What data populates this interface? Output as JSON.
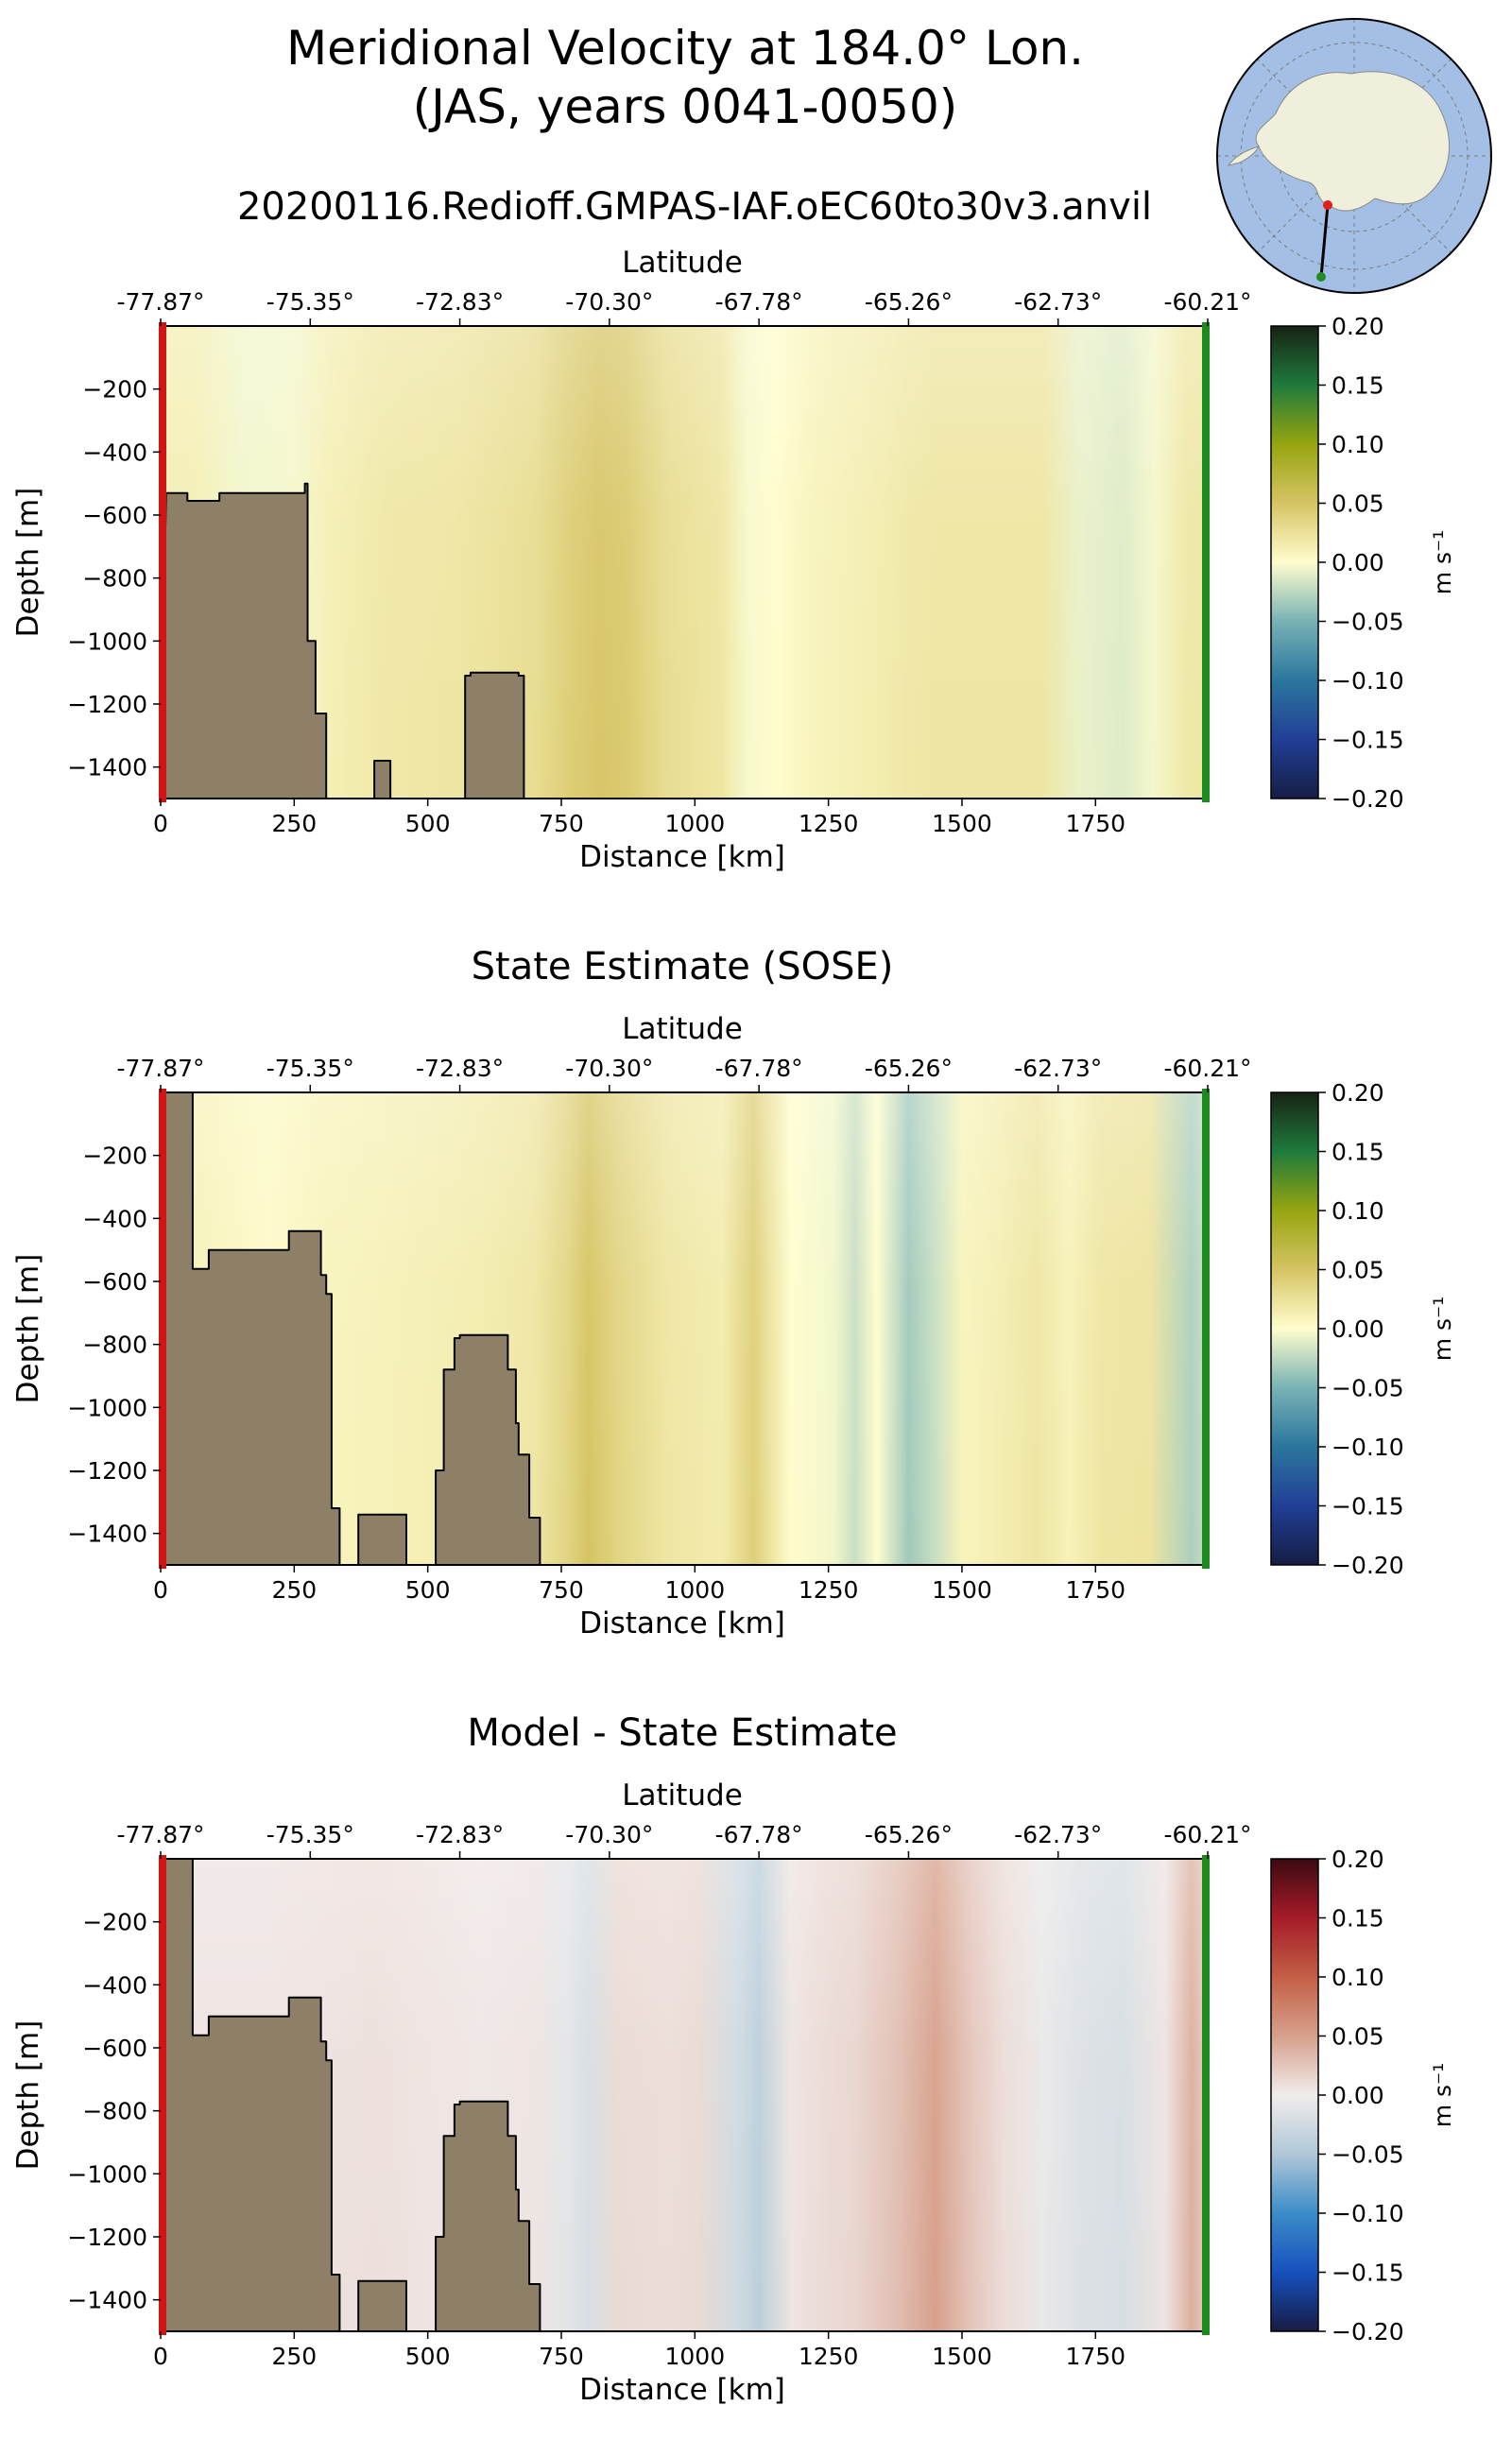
{
  "figure": {
    "title_line1": "Meridional Velocity at 184.0° Lon.",
    "title_line2": "(JAS, years 0041-0050)",
    "run_name": "20200116.Redioff.GMPAS-IAF.oEC60to30v3.anvil",
    "inset_map": "antarctic-polar-stereographic-map"
  },
  "chart_data": [
    {
      "type": "heatmap",
      "title": "",
      "xlabel": "Distance [km]",
      "ylabel": "Depth [m]",
      "top_xlabel": "Latitude",
      "xlim": [
        0,
        1960
      ],
      "ylim": [
        -1500,
        0
      ],
      "x_ticks": [
        0,
        250,
        500,
        750,
        1000,
        1250,
        1500,
        1750
      ],
      "y_ticks": [
        -200,
        -400,
        -600,
        -800,
        -1000,
        -1200,
        -1400
      ],
      "lat_ticks": [
        "-77.87°",
        "-75.35°",
        "-72.83°",
        "-70.30°",
        "-67.78°",
        "-65.26°",
        "-62.73°",
        "-60.21°"
      ],
      "colorbar": {
        "label": "m s⁻¹",
        "min": -0.2,
        "max": 0.2,
        "ticks": [
          "0.20",
          "0.15",
          "0.10",
          "0.05",
          "0.00",
          "−0.05",
          "−0.10",
          "−0.15",
          "−0.20"
        ],
        "cmap": "delta"
      },
      "grid": false,
      "field_columns": {
        "x": [
          0,
          60,
          150,
          250,
          320,
          420,
          550,
          700,
          760,
          820,
          870,
          950,
          1050,
          1100,
          1150,
          1220,
          1300,
          1350,
          1400,
          1450,
          1550,
          1650,
          1720,
          1800,
          1860,
          1920,
          1960
        ],
        "velocity": [
          0.012,
          0.012,
          -0.005,
          -0.004,
          0.012,
          0.018,
          0.02,
          0.028,
          0.04,
          0.048,
          0.045,
          0.028,
          0.02,
          -0.003,
          0.0,
          0.008,
          0.012,
          0.015,
          0.018,
          0.02,
          0.02,
          0.02,
          -0.008,
          -0.012,
          -0.004,
          0.018,
          0.02
        ]
      },
      "bathymetry": {
        "x": [
          0,
          10,
          50,
          50,
          110,
          110,
          270,
          270,
          275,
          275,
          290,
          290,
          310,
          310,
          400,
          400,
          430,
          430,
          570,
          570,
          580,
          580,
          670,
          670,
          680,
          680,
          1960
        ],
        "depth": [
          -1500,
          -530,
          -530,
          -555,
          -555,
          -530,
          -530,
          -500,
          -500,
          -1000,
          -1000,
          -1230,
          -1230,
          -1500,
          -1500,
          -1380,
          -1380,
          -1500,
          -1500,
          -1110,
          -1110,
          -1100,
          -1100,
          -1110,
          -1110,
          -1500,
          -1500
        ]
      }
    },
    {
      "type": "heatmap",
      "title": "State Estimate (SOSE)",
      "xlabel": "Distance [km]",
      "ylabel": "Depth [m]",
      "top_xlabel": "Latitude",
      "xlim": [
        0,
        1960
      ],
      "ylim": [
        -1500,
        0
      ],
      "x_ticks": [
        0,
        250,
        500,
        750,
        1000,
        1250,
        1500,
        1750
      ],
      "y_ticks": [
        -200,
        -400,
        -600,
        -800,
        -1000,
        -1200,
        -1400
      ],
      "lat_ticks": [
        "-77.87°",
        "-75.35°",
        "-72.83°",
        "-70.30°",
        "-67.78°",
        "-65.26°",
        "-62.73°",
        "-60.21°"
      ],
      "colorbar": {
        "label": "m s⁻¹",
        "min": -0.2,
        "max": 0.2,
        "ticks": [
          "0.20",
          "0.15",
          "0.10",
          "0.05",
          "0.00",
          "−0.05",
          "−0.10",
          "−0.15",
          "−0.20"
        ],
        "cmap": "delta"
      },
      "grid": false,
      "field_columns": {
        "x": [
          0,
          100,
          200,
          300,
          400,
          500,
          600,
          700,
          760,
          800,
          860,
          950,
          1050,
          1110,
          1180,
          1260,
          1300,
          1340,
          1400,
          1450,
          1500,
          1560,
          1640,
          1700,
          1760,
          1850,
          1930,
          1960
        ],
        "velocity": [
          0.012,
          0.008,
          0.003,
          0.008,
          0.01,
          0.012,
          0.015,
          0.02,
          0.035,
          0.05,
          0.035,
          0.02,
          0.015,
          0.04,
          0.0,
          -0.005,
          -0.02,
          0.0,
          -0.035,
          -0.02,
          0.008,
          0.012,
          0.02,
          0.01,
          0.02,
          0.022,
          -0.03,
          -0.02
        ]
      },
      "bathymetry": {
        "x": [
          0,
          5,
          60,
          60,
          90,
          90,
          240,
          240,
          300,
          300,
          310,
          310,
          320,
          320,
          335,
          335,
          370,
          370,
          460,
          460,
          515,
          515,
          530,
          530,
          550,
          550,
          560,
          560,
          650,
          650,
          665,
          665,
          670,
          670,
          690,
          690,
          710,
          710,
          1960
        ],
        "depth": [
          -1500,
          0,
          0,
          -560,
          -560,
          -500,
          -500,
          -440,
          -440,
          -580,
          -580,
          -640,
          -640,
          -1320,
          -1320,
          -1500,
          -1500,
          -1340,
          -1340,
          -1500,
          -1500,
          -1200,
          -1200,
          -880,
          -880,
          -780,
          -780,
          -770,
          -770,
          -880,
          -880,
          -1050,
          -1050,
          -1150,
          -1150,
          -1350,
          -1350,
          -1500,
          -1500
        ]
      }
    },
    {
      "type": "heatmap",
      "title": "Model - State Estimate",
      "xlabel": "Distance [km]",
      "ylabel": "Depth [m]",
      "top_xlabel": "Latitude",
      "xlim": [
        0,
        1960
      ],
      "ylim": [
        -1500,
        0
      ],
      "x_ticks": [
        0,
        250,
        500,
        750,
        1000,
        1250,
        1500,
        1750
      ],
      "y_ticks": [
        -200,
        -400,
        -600,
        -800,
        -1000,
        -1200,
        -1400
      ],
      "lat_ticks": [
        "-77.87°",
        "-75.35°",
        "-72.83°",
        "-70.30°",
        "-67.78°",
        "-65.26°",
        "-62.73°",
        "-60.21°"
      ],
      "colorbar": {
        "label": "m s⁻¹",
        "min": -0.2,
        "max": 0.2,
        "ticks": [
          "0.20",
          "0.15",
          "0.10",
          "0.05",
          "0.00",
          "−0.05",
          "−0.10",
          "−0.15",
          "−0.20"
        ],
        "cmap": "balance"
      },
      "grid": false,
      "field_columns": {
        "x": [
          0,
          200,
          400,
          600,
          700,
          760,
          800,
          860,
          950,
          1000,
          1080,
          1120,
          1180,
          1250,
          1300,
          1380,
          1450,
          1520,
          1580,
          1650,
          1720,
          1800,
          1880,
          1930,
          1960
        ],
        "velocity": [
          0.005,
          0.005,
          0.008,
          0.003,
          0.005,
          -0.01,
          -0.02,
          0.012,
          0.01,
          0.012,
          -0.025,
          -0.04,
          0.005,
          0.012,
          0.015,
          0.03,
          0.05,
          0.025,
          0.01,
          -0.005,
          -0.015,
          -0.02,
          0.005,
          0.04,
          0.02
        ]
      },
      "bathymetry": {
        "x": [
          0,
          5,
          60,
          60,
          90,
          90,
          240,
          240,
          300,
          300,
          310,
          310,
          320,
          320,
          335,
          335,
          370,
          370,
          460,
          460,
          515,
          515,
          530,
          530,
          550,
          550,
          560,
          560,
          650,
          650,
          665,
          665,
          670,
          670,
          690,
          690,
          710,
          710,
          1960
        ],
        "depth": [
          -1500,
          0,
          0,
          -560,
          -560,
          -500,
          -500,
          -440,
          -440,
          -580,
          -580,
          -640,
          -640,
          -1320,
          -1320,
          -1500,
          -1500,
          -1340,
          -1340,
          -1500,
          -1500,
          -1200,
          -1200,
          -880,
          -880,
          -780,
          -780,
          -770,
          -770,
          -880,
          -880,
          -1050,
          -1050,
          -1150,
          -1150,
          -1350,
          -1350,
          -1500,
          -1500
        ]
      }
    }
  ]
}
